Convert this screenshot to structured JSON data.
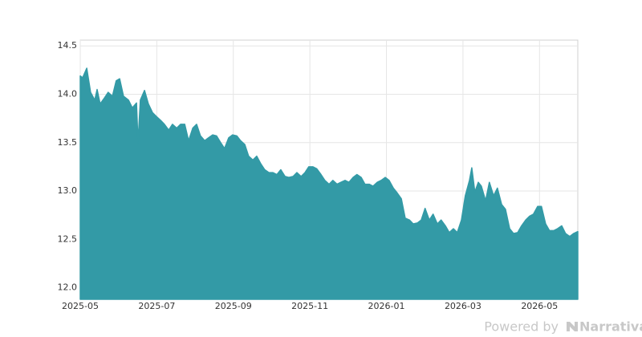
{
  "chart_data": {
    "type": "area",
    "x": [
      0,
      0.06,
      0.17,
      0.27,
      0.38,
      0.44,
      0.52,
      0.63,
      0.73,
      0.84,
      0.94,
      1.03,
      1.13,
      1.26,
      1.36,
      1.47,
      1.51,
      1.57,
      1.68,
      1.78,
      1.89,
      1.99,
      2.1,
      2.2,
      2.31,
      2.41,
      2.52,
      2.62,
      2.73,
      2.83,
      2.94,
      3.04,
      3.14,
      3.25,
      3.35,
      3.46,
      3.56,
      3.67,
      3.77,
      3.88,
      3.98,
      4.09,
      4.19,
      4.3,
      4.4,
      4.51,
      4.61,
      4.72,
      4.82,
      4.93,
      5.03,
      5.14,
      5.24,
      5.35,
      5.45,
      5.56,
      5.66,
      5.77,
      5.87,
      5.97,
      6.08,
      6.18,
      6.29,
      6.39,
      6.5,
      6.6,
      6.71,
      6.81,
      6.92,
      7.02,
      7.13,
      7.23,
      7.34,
      7.44,
      7.55,
      7.65,
      7.76,
      7.86,
      7.97,
      8.07,
      8.18,
      8.28,
      8.39,
      8.49,
      8.6,
      8.7,
      8.81,
      8.91,
      9.01,
      9.12,
      9.22,
      9.33,
      9.43,
      9.54,
      9.64,
      9.75,
      9.85,
      9.96,
      10.06,
      10.17,
      10.23,
      10.31,
      10.4,
      10.48,
      10.59,
      10.69,
      10.8,
      10.9,
      11.01,
      11.11,
      11.22,
      11.32,
      11.43,
      11.53,
      11.64,
      11.74,
      11.84,
      11.95,
      12.05,
      12.16,
      12.26,
      12.37,
      12.47,
      12.58,
      12.68,
      12.79,
      12.89,
      13.0
    ],
    "series": [
      {
        "color": "#339aa6",
        "values": [
          14.19,
          14.17,
          14.27,
          14.02,
          13.94,
          14.05,
          13.9,
          13.96,
          14.02,
          13.98,
          14.14,
          14.16,
          13.98,
          13.94,
          13.86,
          13.91,
          13.5,
          13.94,
          14.04,
          13.9,
          13.81,
          13.77,
          13.73,
          13.69,
          13.63,
          13.69,
          13.65,
          13.69,
          13.69,
          13.52,
          13.65,
          13.69,
          13.57,
          13.52,
          13.55,
          13.58,
          13.57,
          13.5,
          13.44,
          13.55,
          13.58,
          13.57,
          13.52,
          13.48,
          13.36,
          13.32,
          13.36,
          13.28,
          13.22,
          13.19,
          13.19,
          13.17,
          13.22,
          13.15,
          13.14,
          13.15,
          13.19,
          13.15,
          13.19,
          13.25,
          13.25,
          13.23,
          13.17,
          13.11,
          13.07,
          13.11,
          13.07,
          13.09,
          13.11,
          13.09,
          13.14,
          13.17,
          13.14,
          13.07,
          13.07,
          13.05,
          13.09,
          13.11,
          13.14,
          13.11,
          13.03,
          12.98,
          12.92,
          12.72,
          12.7,
          12.66,
          12.67,
          12.7,
          12.82,
          12.7,
          12.76,
          12.66,
          12.7,
          12.64,
          12.57,
          12.61,
          12.57,
          12.7,
          12.95,
          13.11,
          13.24,
          12.99,
          13.09,
          13.05,
          12.9,
          13.09,
          12.95,
          13.03,
          12.86,
          12.81,
          12.61,
          12.56,
          12.57,
          12.64,
          12.7,
          12.74,
          12.76,
          12.84,
          12.84,
          12.66,
          12.59,
          12.59,
          12.61,
          12.64,
          12.56,
          12.53,
          12.56,
          12.58
        ]
      }
    ],
    "xlim": [
      0,
      13
    ],
    "xticks": [
      {
        "value": 0,
        "label": "2025-05"
      },
      {
        "value": 2,
        "label": "2025-07"
      },
      {
        "value": 4,
        "label": "2025-09"
      },
      {
        "value": 6,
        "label": "2025-11"
      },
      {
        "value": 8,
        "label": "2026-01"
      },
      {
        "value": 10,
        "label": "2026-03"
      },
      {
        "value": 12,
        "label": "2026-05"
      }
    ],
    "ylim": [
      11.88,
      14.56
    ],
    "yticks": [
      {
        "value": 12,
        "label": "12.0"
      },
      12.5,
      {
        "value": 13,
        "label": "13.0"
      },
      13.5,
      {
        "value": 14,
        "label": "14.0"
      },
      14.5
    ],
    "grid": true
  },
  "footer": {
    "powered": "Powered by",
    "brand": "Narrativa"
  }
}
